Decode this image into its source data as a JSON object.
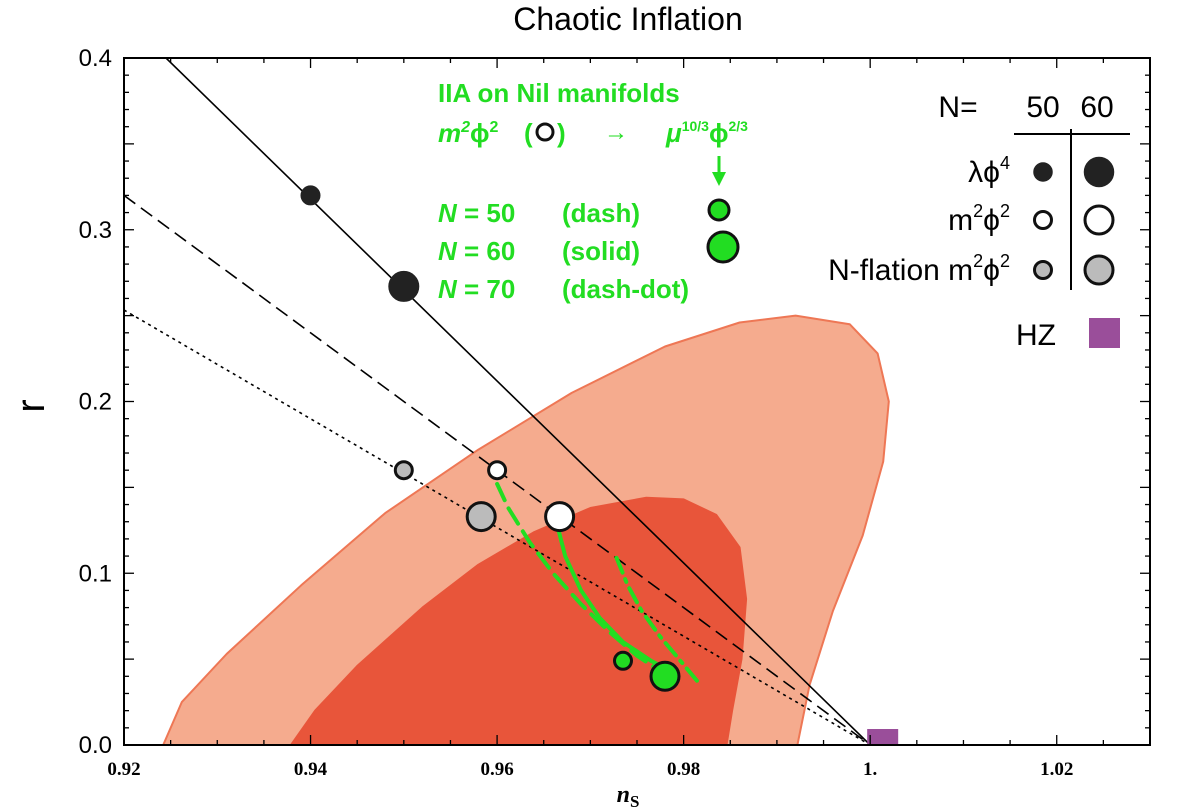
{
  "chart_data": {
    "type": "scatter",
    "title": "Chaotic Inflation",
    "xlabel": "n",
    "xlabel_sub": "S",
    "ylabel": "r",
    "xlim": [
      0.92,
      1.03
    ],
    "ylim": [
      0.0,
      0.4
    ],
    "xticks": [
      {
        "value": 0.92,
        "label": "0.92"
      },
      {
        "value": 0.94,
        "label": "0.94"
      },
      {
        "value": 0.96,
        "label": "0.96"
      },
      {
        "value": 0.98,
        "label": "0.98"
      },
      {
        "value": 1.0,
        "label": "1."
      },
      {
        "value": 1.02,
        "label": "1.02"
      }
    ],
    "yticks": [
      {
        "value": 0.0,
        "label": "0.0"
      },
      {
        "value": 0.1,
        "label": "0.1"
      },
      {
        "value": 0.2,
        "label": "0.2"
      },
      {
        "value": 0.3,
        "label": "0.3"
      },
      {
        "value": 0.4,
        "label": "0.4"
      }
    ],
    "contours": [
      {
        "name": "outer",
        "color": "#f5ab8e",
        "stroke": "#ee7755",
        "points": [
          [
            0.9242,
            0.0
          ],
          [
            0.9262,
            0.025
          ],
          [
            0.931,
            0.053
          ],
          [
            0.939,
            0.093
          ],
          [
            0.948,
            0.135
          ],
          [
            0.958,
            0.172
          ],
          [
            0.968,
            0.205
          ],
          [
            0.978,
            0.232
          ],
          [
            0.986,
            0.246
          ],
          [
            0.992,
            0.25
          ],
          [
            0.9978,
            0.245
          ],
          [
            1.0008,
            0.228
          ],
          [
            1.002,
            0.2
          ],
          [
            1.0014,
            0.165
          ],
          [
            0.9992,
            0.122
          ],
          [
            0.996,
            0.078
          ],
          [
            0.9935,
            0.035
          ],
          [
            0.9922,
            0.0
          ]
        ]
      },
      {
        "name": "inner",
        "color": "#e8553a",
        "stroke": "#e8553a",
        "points": [
          [
            0.9379,
            0.0
          ],
          [
            0.9405,
            0.02
          ],
          [
            0.945,
            0.046
          ],
          [
            0.952,
            0.08
          ],
          [
            0.958,
            0.105
          ],
          [
            0.964,
            0.124
          ],
          [
            0.97,
            0.138
          ],
          [
            0.976,
            0.144
          ],
          [
            0.98,
            0.143
          ],
          [
            0.9835,
            0.134
          ],
          [
            0.986,
            0.115
          ],
          [
            0.9867,
            0.085
          ],
          [
            0.9862,
            0.05
          ],
          [
            0.9852,
            0.02
          ],
          [
            0.9846,
            0.0
          ]
        ]
      }
    ],
    "lines": [
      {
        "name": "lambda-phi4",
        "style": "solid",
        "points": [
          [
            0.9245,
            0.4
          ],
          [
            1.0,
            0.0
          ]
        ]
      },
      {
        "name": "m2phi2",
        "style": "dash",
        "points": [
          [
            0.92,
            0.32
          ],
          [
            1.0,
            0.0
          ]
        ]
      },
      {
        "name": "n-flation",
        "style": "dot",
        "points": [
          [
            0.92,
            0.2533
          ],
          [
            1.0,
            0.0
          ]
        ]
      }
    ],
    "green_curves": [
      {
        "style": "dash",
        "points": [
          [
            0.96,
            0.152
          ],
          [
            0.9612,
            0.138
          ],
          [
            0.9635,
            0.118
          ],
          [
            0.966,
            0.1
          ],
          [
            0.969,
            0.082
          ],
          [
            0.972,
            0.066
          ],
          [
            0.975,
            0.052
          ],
          [
            0.9778,
            0.042
          ]
        ]
      },
      {
        "style": "solid",
        "points": [
          [
            0.9665,
            0.127
          ],
          [
            0.9673,
            0.11
          ],
          [
            0.969,
            0.09
          ],
          [
            0.971,
            0.074
          ],
          [
            0.9735,
            0.06
          ],
          [
            0.9765,
            0.049
          ],
          [
            0.979,
            0.042
          ]
        ]
      },
      {
        "style": "dashdot",
        "points": [
          [
            0.9728,
            0.109
          ],
          [
            0.974,
            0.093
          ],
          [
            0.9755,
            0.078
          ],
          [
            0.9775,
            0.063
          ],
          [
            0.9795,
            0.05
          ],
          [
            0.9815,
            0.037
          ]
        ]
      }
    ],
    "points": [
      {
        "name": "lambda-phi4-n50",
        "x": 0.94,
        "y": 0.32,
        "size": "small",
        "fill": "#222222",
        "stroke": "#222222"
      },
      {
        "name": "lambda-phi4-n60",
        "x": 0.95,
        "y": 0.267,
        "size": "large",
        "fill": "#222222",
        "stroke": "#222222"
      },
      {
        "name": "m2phi2-n50",
        "x": 0.96,
        "y": 0.16,
        "size": "small",
        "fill": "#ffffff",
        "stroke": "#111111"
      },
      {
        "name": "m2phi2-n60",
        "x": 0.9667,
        "y": 0.133,
        "size": "large",
        "fill": "#ffffff",
        "stroke": "#111111"
      },
      {
        "name": "nflation-n50",
        "x": 0.95,
        "y": 0.16,
        "size": "small",
        "fill": "#bbbbbb",
        "stroke": "#111111"
      },
      {
        "name": "nflation-n60",
        "x": 0.9583,
        "y": 0.133,
        "size": "large",
        "fill": "#bbbbbb",
        "stroke": "#111111"
      },
      {
        "name": "mu-phi23-n50",
        "x": 0.9735,
        "y": 0.049,
        "size": "small",
        "fill": "#22dd22",
        "stroke": "#111111"
      },
      {
        "name": "mu-phi23-n60",
        "x": 0.978,
        "y": 0.04,
        "size": "large",
        "fill": "#22dd22",
        "stroke": "#111111"
      }
    ],
    "hz_marker": {
      "x": 1.0,
      "y": 0.0,
      "color": "#9a4e9a"
    },
    "annotation": {
      "heading": "IIA on Nil manifolds",
      "m2": "m",
      "m2_exp": "2",
      "phi": "ϕ",
      "phi_exp": "2",
      "open_paren": "(",
      "close_paren": ")",
      "arrow": "→",
      "mu": "μ",
      "mu_exp": "10/3",
      "phi2": "ϕ",
      "phi2_exp": "2/3",
      "rows": [
        {
          "n_label": "N",
          "eq": " = 50",
          "desc": "(dash)"
        },
        {
          "n_label": "N",
          "eq": " = 60",
          "desc": "(solid)"
        },
        {
          "n_label": "N",
          "eq": " = 70",
          "desc": "(dash-dot)"
        }
      ]
    },
    "legend": {
      "n_label": "N=",
      "col1": "50",
      "col2": "60",
      "rows": [
        {
          "label": "λϕ",
          "sup": "4"
        },
        {
          "label": "m",
          "sup": "2",
          "label2": "ϕ",
          "sup2": "2"
        },
        {
          "label": "N-flation m",
          "sup": "2",
          "label2": "ϕ",
          "sup2": "2"
        }
      ],
      "hz_label": "HZ"
    }
  }
}
